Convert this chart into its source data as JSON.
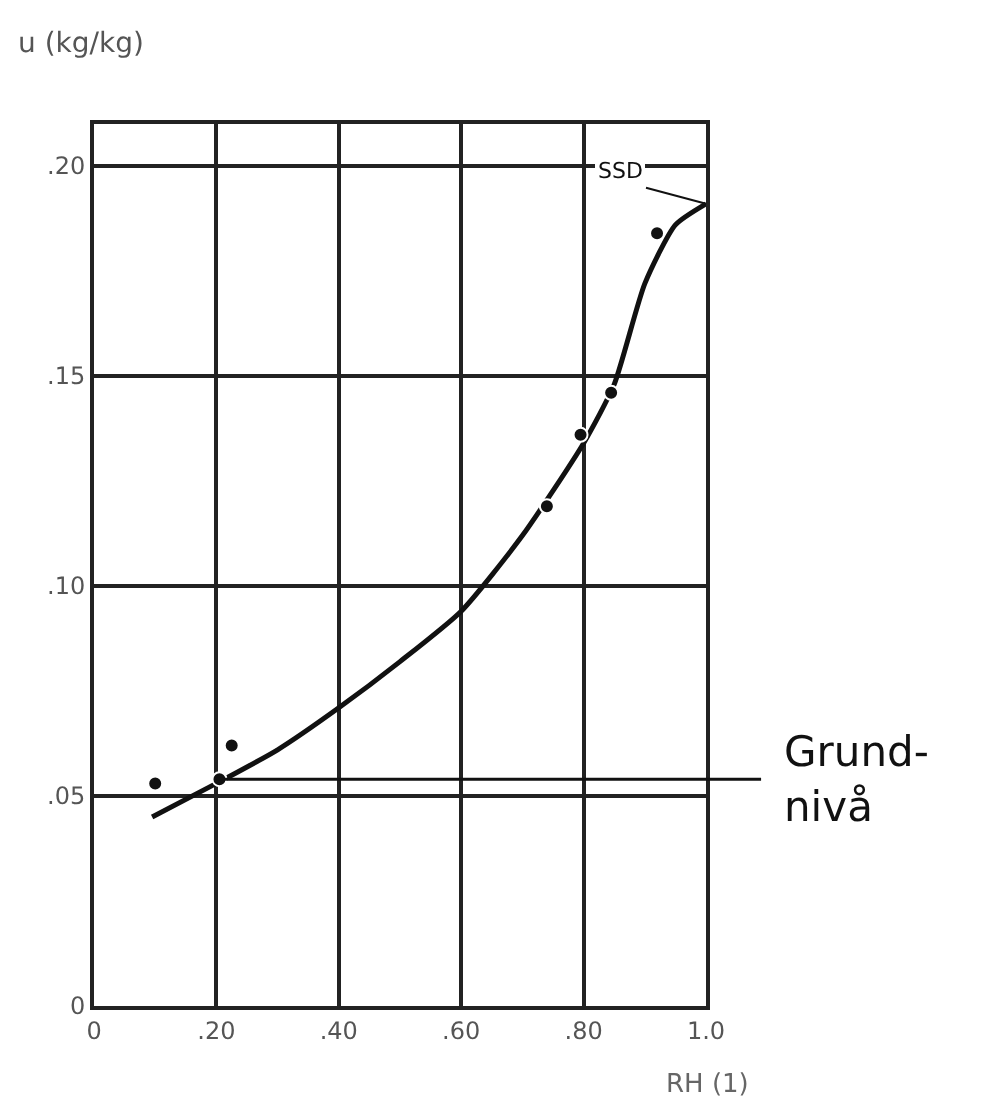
{
  "chart_data": {
    "type": "scatter",
    "xlabel": "RH (1)",
    "ylabel": "u (kg/kg)",
    "xlim": [
      0,
      1.0
    ],
    "ylim": [
      0,
      0.21
    ],
    "xticks": [
      0,
      {
        "value": 0.2,
        "label": ".20"
      },
      {
        "value": 0.4,
        "label": ".40"
      },
      {
        "value": 0.6,
        "label": ".60"
      },
      {
        "value": 0.8,
        "label": ".80"
      },
      {
        "value": 1.0,
        "label": "1.0"
      }
    ],
    "yticks": [
      0,
      {
        "value": 0.05,
        "label": ".05"
      },
      {
        "value": 0.1,
        "label": ".10"
      },
      {
        "value": 0.15,
        "label": ".15"
      },
      {
        "value": 0.2,
        "label": ".20"
      }
    ],
    "grid": true,
    "series": [
      {
        "color": "#111111",
        "marker": "circle",
        "x": [
          0.1,
          0.205,
          0.225,
          0.74,
          0.795,
          0.845,
          0.92
        ],
        "values": [
          0.053,
          0.054,
          0.062,
          0.119,
          0.136,
          0.146,
          0.184
        ]
      },
      {
        "type": "line",
        "color": "#111111",
        "marker": "none",
        "line_style": "solid",
        "x": [
          0.095,
          0.2,
          0.3,
          0.4,
          0.5,
          0.6,
          0.7,
          0.8,
          0.85,
          0.9,
          0.95,
          1.0
        ],
        "values": [
          0.045,
          0.053,
          0.061,
          0.071,
          0.082,
          0.094,
          0.112,
          0.134,
          0.148,
          0.172,
          0.186,
          0.191
        ]
      }
    ],
    "ref_lines": [
      {
        "axis": "y",
        "value": 0.054,
        "label": "Grund-\nnivå",
        "color": "#111111"
      }
    ],
    "annotations": [
      {
        "text": "SSD",
        "x": 1.0,
        "y": 0.191
      }
    ]
  }
}
